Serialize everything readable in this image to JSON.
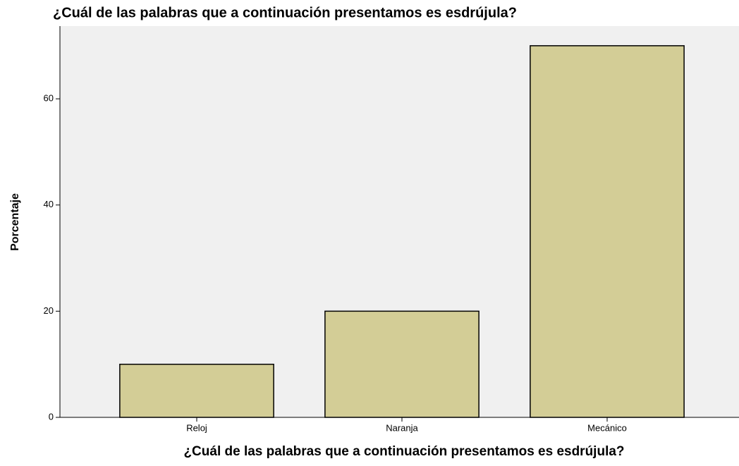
{
  "chart_data": {
    "type": "bar",
    "title": "¿Cuál de las palabras que a continuación presentamos es esdrújula?",
    "x_label": "¿Cuál de las palabras que a continuación presentamos es esdrújula?",
    "y_label": "Porcentaje",
    "categories": [
      "Reloj",
      "Naranja",
      "Mecánico"
    ],
    "values": [
      10,
      20,
      70
    ],
    "color": "#d3cd96",
    "ylim": [
      0,
      73.7
    ],
    "yticks": [
      0,
      20,
      40,
      60
    ],
    "grid": false
  }
}
